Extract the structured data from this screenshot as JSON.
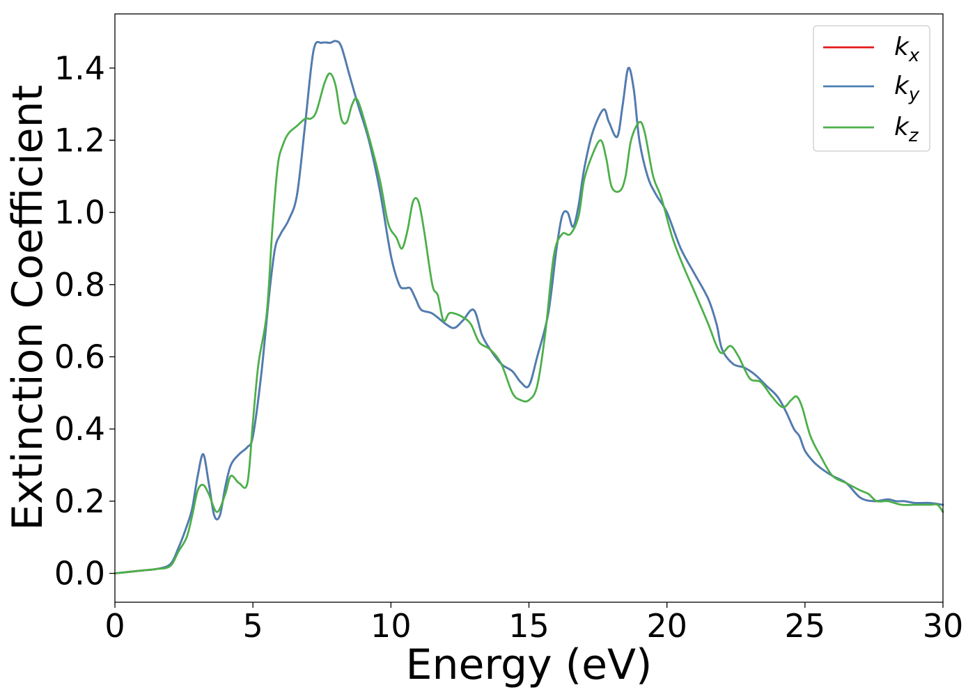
{
  "chart_data": {
    "type": "line",
    "title": "",
    "xlabel": "Energy (eV)",
    "ylabel": "Extinction Coefficient",
    "xlim": [
      0,
      30
    ],
    "ylim": [
      -0.08,
      1.55
    ],
    "xticks": [
      0,
      5,
      10,
      15,
      20,
      25,
      30
    ],
    "xtick_labels": [
      "0",
      "5",
      "10",
      "15",
      "20",
      "25",
      "30"
    ],
    "yticks": [
      0.0,
      0.2,
      0.4,
      0.6,
      0.8,
      1.0,
      1.2,
      1.4
    ],
    "ytick_labels": [
      "0.0",
      "0.2",
      "0.4",
      "0.6",
      "0.8",
      "1.0",
      "1.2",
      "1.4"
    ],
    "grid": false,
    "legend_position": "top-right",
    "series": [
      {
        "name": "kx",
        "base": "k",
        "sub": "x",
        "color": "#e41a1c",
        "x": [
          0,
          1,
          1.5,
          2,
          2.3,
          2.6,
          2.8,
          3.0,
          3.2,
          3.4,
          3.6,
          3.8,
          4.0,
          4.2,
          4.5,
          4.8,
          5.0,
          5.3,
          5.6,
          5.8,
          6.0,
          6.3,
          6.6,
          6.9,
          7.2,
          7.5,
          7.8,
          8.0,
          8.2,
          8.5,
          8.8,
          9.2,
          9.6,
          10.0,
          10.3,
          10.5,
          10.7,
          10.9,
          11.1,
          11.5,
          12.0,
          12.3,
          12.6,
          13.0,
          13.3,
          13.6,
          14.0,
          14.4,
          14.7,
          15.0,
          15.3,
          15.7,
          16.0,
          16.2,
          16.4,
          16.6,
          16.8,
          17.0,
          17.3,
          17.7,
          17.9,
          18.2,
          18.4,
          18.6,
          18.8,
          19.0,
          19.3,
          19.6,
          20.0,
          20.5,
          21.0,
          21.5,
          21.8,
          22.0,
          22.4,
          22.8,
          23.2,
          23.6,
          24.0,
          24.3,
          24.6,
          24.8,
          25.0,
          25.3,
          25.6,
          26.0,
          26.5,
          27.0,
          27.5,
          28.0,
          28.3,
          28.6,
          29.0,
          29.5,
          30.0
        ],
        "values": [
          0,
          0.008,
          0.012,
          0.025,
          0.07,
          0.13,
          0.18,
          0.27,
          0.33,
          0.25,
          0.16,
          0.16,
          0.24,
          0.3,
          0.33,
          0.35,
          0.38,
          0.55,
          0.78,
          0.9,
          0.94,
          0.98,
          1.05,
          1.25,
          1.45,
          1.47,
          1.47,
          1.475,
          1.46,
          1.38,
          1.3,
          1.2,
          1.06,
          0.88,
          0.8,
          0.79,
          0.79,
          0.76,
          0.73,
          0.72,
          0.69,
          0.68,
          0.7,
          0.73,
          0.66,
          0.62,
          0.58,
          0.56,
          0.53,
          0.52,
          0.6,
          0.72,
          0.9,
          0.99,
          1.0,
          0.96,
          1.02,
          1.12,
          1.22,
          1.285,
          1.25,
          1.21,
          1.3,
          1.4,
          1.34,
          1.2,
          1.1,
          1.05,
          1.0,
          0.9,
          0.83,
          0.76,
          0.69,
          0.62,
          0.58,
          0.57,
          0.55,
          0.52,
          0.49,
          0.45,
          0.4,
          0.38,
          0.34,
          0.31,
          0.29,
          0.27,
          0.25,
          0.21,
          0.2,
          0.205,
          0.2,
          0.2,
          0.195,
          0.195,
          0.19
        ]
      },
      {
        "name": "ky",
        "base": "k",
        "sub": "y",
        "color": "#4a7fb5",
        "x": [
          0,
          1,
          1.5,
          2,
          2.3,
          2.6,
          2.8,
          3.0,
          3.2,
          3.4,
          3.6,
          3.8,
          4.0,
          4.2,
          4.5,
          4.8,
          5.0,
          5.3,
          5.6,
          5.8,
          6.0,
          6.3,
          6.6,
          6.9,
          7.2,
          7.5,
          7.8,
          8.0,
          8.2,
          8.5,
          8.8,
          9.2,
          9.6,
          10.0,
          10.3,
          10.5,
          10.7,
          10.9,
          11.1,
          11.5,
          12.0,
          12.3,
          12.6,
          13.0,
          13.3,
          13.6,
          14.0,
          14.4,
          14.7,
          15.0,
          15.3,
          15.7,
          16.0,
          16.2,
          16.4,
          16.6,
          16.8,
          17.0,
          17.3,
          17.7,
          17.9,
          18.2,
          18.4,
          18.6,
          18.8,
          19.0,
          19.3,
          19.6,
          20.0,
          20.5,
          21.0,
          21.5,
          21.8,
          22.0,
          22.4,
          22.8,
          23.2,
          23.6,
          24.0,
          24.3,
          24.6,
          24.8,
          25.0,
          25.3,
          25.6,
          26.0,
          26.5,
          27.0,
          27.5,
          28.0,
          28.3,
          28.6,
          29.0,
          29.5,
          30.0
        ],
        "values": [
          0,
          0.008,
          0.012,
          0.025,
          0.07,
          0.13,
          0.18,
          0.27,
          0.33,
          0.25,
          0.16,
          0.16,
          0.24,
          0.3,
          0.33,
          0.35,
          0.38,
          0.55,
          0.78,
          0.9,
          0.94,
          0.98,
          1.05,
          1.25,
          1.45,
          1.47,
          1.47,
          1.475,
          1.46,
          1.38,
          1.3,
          1.2,
          1.06,
          0.88,
          0.8,
          0.79,
          0.79,
          0.76,
          0.73,
          0.72,
          0.69,
          0.68,
          0.7,
          0.73,
          0.66,
          0.62,
          0.58,
          0.56,
          0.53,
          0.52,
          0.6,
          0.72,
          0.9,
          0.99,
          1.0,
          0.96,
          1.02,
          1.12,
          1.22,
          1.285,
          1.25,
          1.21,
          1.3,
          1.4,
          1.34,
          1.2,
          1.1,
          1.05,
          1.0,
          0.9,
          0.83,
          0.76,
          0.69,
          0.62,
          0.58,
          0.57,
          0.55,
          0.52,
          0.49,
          0.45,
          0.4,
          0.38,
          0.34,
          0.31,
          0.29,
          0.27,
          0.25,
          0.21,
          0.2,
          0.205,
          0.2,
          0.2,
          0.195,
          0.195,
          0.19
        ]
      },
      {
        "name": "kz",
        "base": "k",
        "sub": "z",
        "color": "#4daf4a",
        "x": [
          0,
          1,
          1.5,
          2,
          2.3,
          2.6,
          2.8,
          3.0,
          3.2,
          3.4,
          3.7,
          4.0,
          4.2,
          4.5,
          4.8,
          5.0,
          5.2,
          5.5,
          5.7,
          5.9,
          6.1,
          6.3,
          6.6,
          6.9,
          7.1,
          7.3,
          7.6,
          7.8,
          8.0,
          8.2,
          8.4,
          8.6,
          8.8,
          9.2,
          9.6,
          9.9,
          10.2,
          10.4,
          10.6,
          10.8,
          11.0,
          11.2,
          11.5,
          11.7,
          11.9,
          12.1,
          12.3,
          12.6,
          12.9,
          13.2,
          13.6,
          14.0,
          14.4,
          14.7,
          15.0,
          15.3,
          15.6,
          15.9,
          16.2,
          16.5,
          16.8,
          17.0,
          17.3,
          17.6,
          17.8,
          18.0,
          18.3,
          18.5,
          18.7,
          19.0,
          19.2,
          19.5,
          19.8,
          20.2,
          20.6,
          21.0,
          21.5,
          21.8,
          22.0,
          22.3,
          22.6,
          23.0,
          23.4,
          23.8,
          24.2,
          24.5,
          24.7,
          24.9,
          25.2,
          25.6,
          26.0,
          26.5,
          27.0,
          27.3,
          27.6,
          28.0,
          28.5,
          29.0,
          29.5,
          29.8,
          30.0
        ],
        "values": [
          0,
          0.008,
          0.012,
          0.02,
          0.06,
          0.1,
          0.16,
          0.23,
          0.245,
          0.22,
          0.17,
          0.22,
          0.27,
          0.25,
          0.25,
          0.42,
          0.58,
          0.72,
          0.95,
          1.13,
          1.19,
          1.22,
          1.24,
          1.26,
          1.26,
          1.28,
          1.36,
          1.385,
          1.35,
          1.26,
          1.25,
          1.3,
          1.31,
          1.21,
          1.09,
          0.97,
          0.93,
          0.9,
          0.95,
          1.03,
          1.03,
          0.95,
          0.8,
          0.77,
          0.7,
          0.72,
          0.72,
          0.71,
          0.69,
          0.64,
          0.62,
          0.58,
          0.5,
          0.48,
          0.48,
          0.52,
          0.67,
          0.88,
          0.94,
          0.94,
          0.99,
          1.09,
          1.16,
          1.2,
          1.15,
          1.07,
          1.06,
          1.1,
          1.2,
          1.25,
          1.22,
          1.1,
          1.04,
          0.93,
          0.85,
          0.78,
          0.69,
          0.63,
          0.61,
          0.63,
          0.6,
          0.54,
          0.53,
          0.49,
          0.46,
          0.48,
          0.49,
          0.46,
          0.38,
          0.32,
          0.27,
          0.25,
          0.23,
          0.22,
          0.2,
          0.2,
          0.19,
          0.19,
          0.19,
          0.19,
          0.17
        ]
      }
    ]
  }
}
